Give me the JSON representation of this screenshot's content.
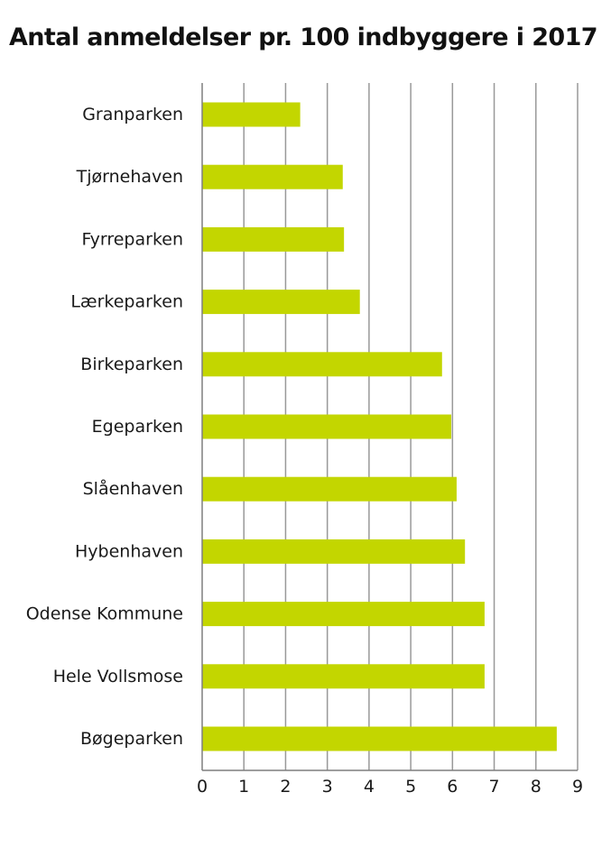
{
  "chart_data": {
    "type": "bar",
    "orientation": "horizontal",
    "title": "Antal anmeldelser pr. 100 indbyggere i 2017",
    "categories": [
      "Granparken",
      "Tjørnehaven",
      "Fyrreparken",
      "Lærkeparken",
      "Birkeparken",
      "Egeparken",
      "Slåenhaven",
      "Hybenhaven",
      "Odense Kommune",
      "Hele Vollsmose",
      "Bøgeparken"
    ],
    "values": [
      2.35,
      3.37,
      3.4,
      3.78,
      5.75,
      5.97,
      6.1,
      6.3,
      6.77,
      6.77,
      8.5
    ],
    "xlim": [
      0,
      9
    ],
    "xticks": [
      "0",
      "1",
      "2",
      "3",
      "4",
      "5",
      "6",
      "7",
      "8",
      "9"
    ],
    "xlabel": "",
    "ylabel": "",
    "grid": "vertical",
    "legend": "none",
    "colors": {
      "bar": "#c3d600",
      "grid": "#999999",
      "axis": "#7f7f7f",
      "text": "#1a1a1a"
    }
  }
}
